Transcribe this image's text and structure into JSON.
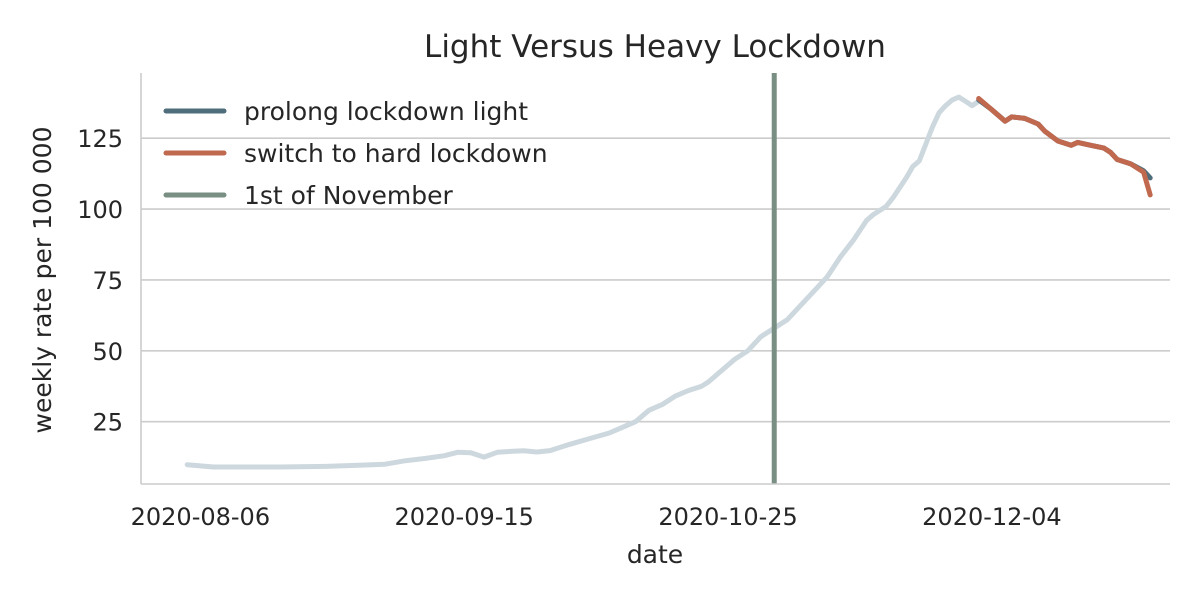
{
  "chart_data": {
    "type": "line",
    "title": "Light Versus Heavy Lockdown",
    "xlabel": "date",
    "ylabel": "weekly rate per 100 000",
    "xlim": [
      "2020-07-28",
      "2020-12-31"
    ],
    "ylim": [
      3,
      148
    ],
    "x_ticks": [
      "2020-08-06",
      "2020-09-15",
      "2020-10-25",
      "2020-12-04"
    ],
    "y_ticks": [
      25,
      50,
      75,
      100,
      125
    ],
    "grid": "horizontal",
    "legend": {
      "placement": "top-left",
      "entries": [
        {
          "label": "prolong lockdown light",
          "color": "#4f6d7a"
        },
        {
          "label": "switch to hard lockdown",
          "color": "#c0694e"
        },
        {
          "label": "1st of November",
          "color": "#7a8f83"
        }
      ]
    },
    "vline": {
      "x": "2020-11-01",
      "color": "#7a8f83"
    },
    "series": [
      {
        "name": "",
        "color": "#cdd8de",
        "points": [
          [
            "2020-08-04",
            9.8
          ],
          [
            "2020-08-08",
            9.0
          ],
          [
            "2020-08-12",
            9.0
          ],
          [
            "2020-08-18",
            9.0
          ],
          [
            "2020-08-25",
            9.2
          ],
          [
            "2020-08-30",
            9.6
          ],
          [
            "2020-09-03",
            10.0
          ],
          [
            "2020-09-06",
            11.2
          ],
          [
            "2020-09-09",
            12.0
          ],
          [
            "2020-09-12",
            13.0
          ],
          [
            "2020-09-14",
            14.2
          ],
          [
            "2020-09-16",
            14.0
          ],
          [
            "2020-09-18",
            12.5
          ],
          [
            "2020-09-20",
            14.2
          ],
          [
            "2020-09-22",
            14.5
          ],
          [
            "2020-09-24",
            14.7
          ],
          [
            "2020-09-26",
            14.3
          ],
          [
            "2020-09-28",
            14.8
          ],
          [
            "2020-10-01",
            17.0
          ],
          [
            "2020-10-04",
            19.0
          ],
          [
            "2020-10-07",
            21.0
          ],
          [
            "2020-10-09",
            23.0
          ],
          [
            "2020-10-11",
            25.0
          ],
          [
            "2020-10-13",
            29.0
          ],
          [
            "2020-10-15",
            31.0
          ],
          [
            "2020-10-17",
            34.0
          ],
          [
            "2020-10-19",
            36.0
          ],
          [
            "2020-10-21",
            37.5
          ],
          [
            "2020-10-22",
            39.0
          ],
          [
            "2020-10-24",
            43.0
          ],
          [
            "2020-10-26",
            47.0
          ],
          [
            "2020-10-28",
            50.0
          ],
          [
            "2020-10-30",
            55.0
          ],
          [
            "2020-10-31",
            56.5
          ],
          [
            "2020-11-01",
            58.0
          ],
          [
            "2020-11-03",
            61.0
          ],
          [
            "2020-11-05",
            66.0
          ],
          [
            "2020-11-07",
            71.0
          ],
          [
            "2020-11-09",
            76.0
          ],
          [
            "2020-11-11",
            83.0
          ],
          [
            "2020-11-13",
            89.0
          ],
          [
            "2020-11-15",
            96.0
          ],
          [
            "2020-11-16",
            98.0
          ],
          [
            "2020-11-18",
            101.0
          ],
          [
            "2020-11-19",
            104.0
          ],
          [
            "2020-11-21",
            111.0
          ],
          [
            "2020-11-22",
            115.0
          ],
          [
            "2020-11-23",
            117.0
          ],
          [
            "2020-11-24",
            123.0
          ],
          [
            "2020-11-25",
            129.0
          ],
          [
            "2020-11-26",
            134.0
          ],
          [
            "2020-11-27",
            136.5
          ],
          [
            "2020-11-28",
            138.5
          ],
          [
            "2020-11-29",
            139.5
          ],
          [
            "2020-11-30",
            138.0
          ],
          [
            "2020-12-01",
            136.5
          ],
          [
            "2020-12-02",
            138.0
          ]
        ]
      },
      {
        "name": "prolong lockdown light",
        "color": "#4f6d7a",
        "points": [
          [
            "2020-12-02",
            138.5
          ],
          [
            "2020-12-04",
            135.0
          ],
          [
            "2020-12-06",
            131.0
          ],
          [
            "2020-12-07",
            132.5
          ],
          [
            "2020-12-09",
            132.0
          ],
          [
            "2020-12-11",
            130.0
          ],
          [
            "2020-12-12",
            127.5
          ],
          [
            "2020-12-14",
            124.0
          ],
          [
            "2020-12-16",
            122.5
          ],
          [
            "2020-12-17",
            123.5
          ],
          [
            "2020-12-19",
            122.5
          ],
          [
            "2020-12-21",
            121.5
          ],
          [
            "2020-12-22",
            120.0
          ],
          [
            "2020-12-23",
            117.5
          ],
          [
            "2020-12-25",
            116.0
          ],
          [
            "2020-12-27",
            113.5
          ],
          [
            "2020-12-28",
            111.0
          ]
        ]
      },
      {
        "name": "switch to hard lockdown",
        "color": "#c0694e",
        "points": [
          [
            "2020-12-02",
            139.0
          ],
          [
            "2020-12-04",
            135.0
          ],
          [
            "2020-12-06",
            131.0
          ],
          [
            "2020-12-07",
            132.5
          ],
          [
            "2020-12-09",
            132.0
          ],
          [
            "2020-12-11",
            130.0
          ],
          [
            "2020-12-12",
            127.5
          ],
          [
            "2020-12-14",
            124.0
          ],
          [
            "2020-12-16",
            122.5
          ],
          [
            "2020-12-17",
            123.5
          ],
          [
            "2020-12-19",
            122.5
          ],
          [
            "2020-12-21",
            121.5
          ],
          [
            "2020-12-22",
            120.0
          ],
          [
            "2020-12-23",
            117.5
          ],
          [
            "2020-12-25",
            116.0
          ],
          [
            "2020-12-27",
            113.0
          ],
          [
            "2020-12-28",
            105.0
          ]
        ]
      }
    ]
  }
}
